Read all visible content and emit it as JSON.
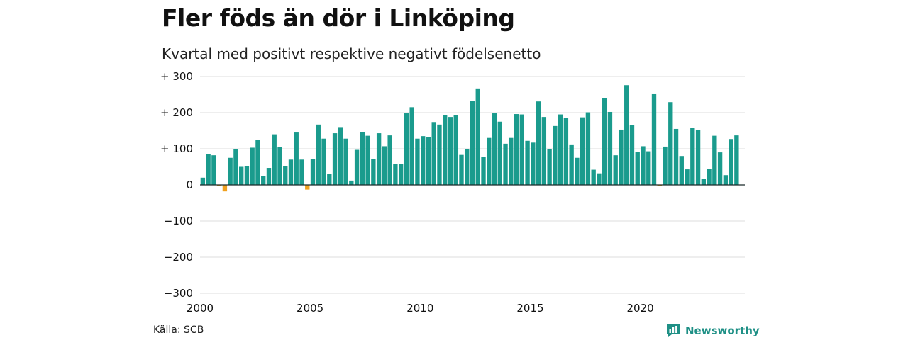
{
  "title": "Fler föds än dör i Linköping",
  "subtitle": "Kvartal med positivt respektive negativt födelsenetto",
  "source": "Källa: SCB",
  "brand": "Newsworthy",
  "colors": {
    "positive": "#1a9b8d",
    "negative": "#f0a01e",
    "brand": "#1f9086",
    "grid": "#dddddd"
  },
  "chart_data": {
    "type": "bar",
    "x_start_year": 2000,
    "periods_per_year": 4,
    "ylim": [
      -300,
      300
    ],
    "xlim": [
      2000,
      2024.75
    ],
    "y_ticks": [
      300,
      200,
      100,
      0,
      -100,
      -200,
      -300
    ],
    "y_tick_labels": [
      "+ 300",
      "+ 200",
      "+ 100",
      "0",
      "−100",
      "−200",
      "−300"
    ],
    "x_ticks": [
      2000,
      2005,
      2010,
      2015,
      2020
    ],
    "x_tick_labels": [
      "2000",
      "2005",
      "2010",
      "2015",
      "2020"
    ],
    "grid": true,
    "values": [
      20,
      86,
      82,
      -3,
      -18,
      75,
      100,
      50,
      52,
      103,
      124,
      25,
      47,
      140,
      105,
      52,
      70,
      145,
      70,
      -13,
      71,
      167,
      128,
      31,
      143,
      160,
      128,
      12,
      97,
      147,
      136,
      71,
      143,
      107,
      137,
      58,
      58,
      198,
      215,
      128,
      135,
      132,
      174,
      167,
      193,
      188,
      193,
      83,
      100,
      233,
      267,
      78,
      130,
      198,
      175,
      114,
      130,
      196,
      195,
      122,
      117,
      231,
      188,
      100,
      163,
      195,
      186,
      112,
      75,
      187,
      201,
      42,
      32,
      240,
      202,
      82,
      153,
      276,
      166,
      92,
      107,
      93,
      253,
      -2,
      106,
      229,
      155,
      80,
      43,
      157,
      151,
      17,
      44,
      136,
      90,
      27,
      127,
      137
    ]
  }
}
